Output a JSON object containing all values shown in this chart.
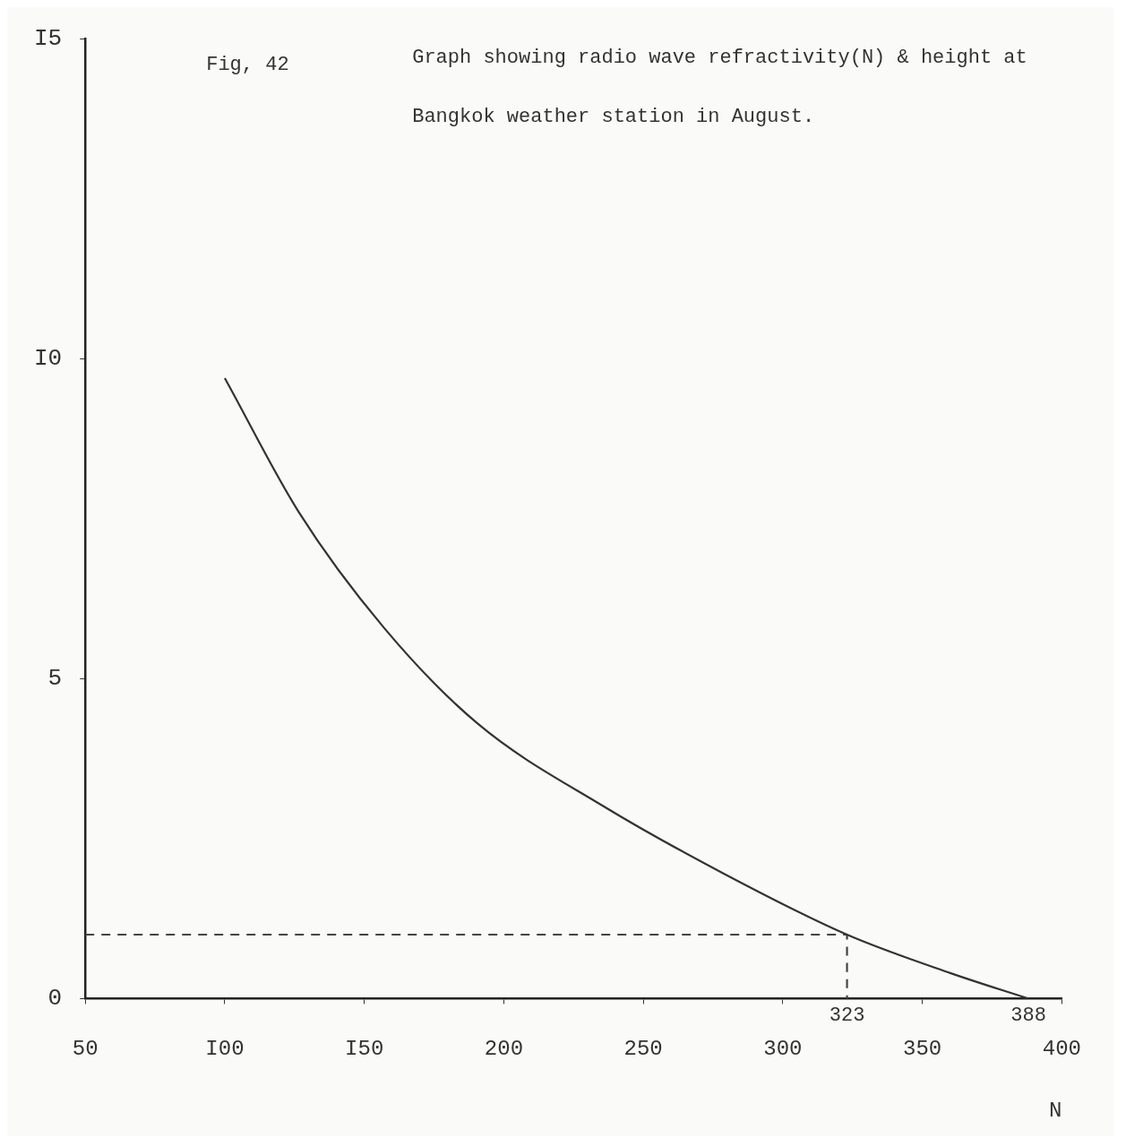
{
  "chart_data": {
    "type": "line",
    "title": "Graph showing radio wave refractivity(N) & height at Bangkok weather station in August.",
    "xlabel": "N",
    "xlim": [
      50,
      400
    ],
    "xticks": [
      50,
      {
        "value": 100,
        "label": "I00"
      },
      {
        "value": 150,
        "label": "I50"
      },
      200,
      250,
      300,
      350,
      400
    ],
    "ylim": [
      0,
      15
    ],
    "yticks": [
      0,
      5,
      {
        "value": 10,
        "label": "I0"
      },
      {
        "value": 15,
        "label": "I5"
      }
    ],
    "series": [
      {
        "color": "#333333",
        "line_style": "solid",
        "x": [
          100,
          126.6,
          157,
          190.6,
          236,
          279,
          323,
          360,
          388
        ],
        "values": [
          9.7,
          7.6,
          5.8,
          4.3,
          3.0,
          1.95,
          1.0,
          0.4,
          0
        ]
      },
      {
        "color": "#444444",
        "line_style": "dashed",
        "x": [
          50,
          323,
          323
        ],
        "values": [
          1,
          1,
          0
        ]
      }
    ],
    "annotations": [
      "Fig, 42",
      {
        "text": "323",
        "x": 323,
        "y": 0
      },
      {
        "text": "388",
        "x": 388,
        "y": 0
      }
    ],
    "grid": false,
    "legend": false,
    "marker": "none"
  }
}
